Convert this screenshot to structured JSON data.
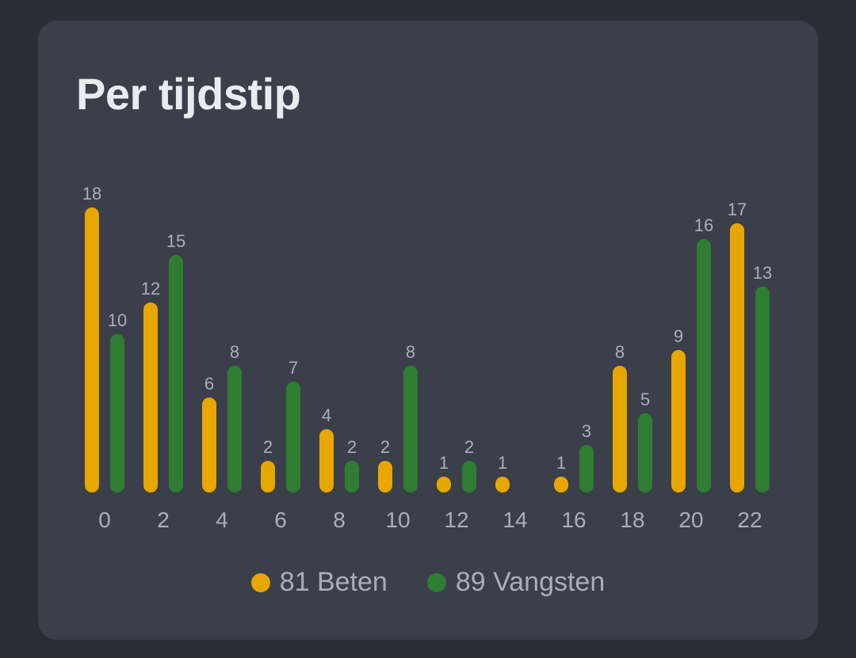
{
  "card": {
    "title": "Per tijdstip"
  },
  "colors": {
    "beten": "#e8a600",
    "vangsten": "#2e7d32",
    "label": "#a9aeb8",
    "background": "#3a3f4a"
  },
  "legend": {
    "items": [
      {
        "label": "81 Beten",
        "color": "#e8a600"
      },
      {
        "label": "89 Vangsten",
        "color": "#2e7d32"
      }
    ]
  },
  "chart_data": {
    "type": "bar",
    "title": "Per tijdstip",
    "xlabel": "",
    "ylabel": "",
    "x_ticks": [
      "0",
      "2",
      "4",
      "6",
      "8",
      "10",
      "12",
      "14",
      "16",
      "18",
      "20",
      "22"
    ],
    "categories": [
      "0",
      "2",
      "4",
      "6",
      "8",
      "10",
      "12",
      "14",
      "16",
      "18",
      "20",
      "22"
    ],
    "series": [
      {
        "name": "81 Beten",
        "color": "#e8a600",
        "values": [
          18,
          12,
          6,
          2,
          4,
          2,
          1,
          1,
          1,
          8,
          9,
          17
        ]
      },
      {
        "name": "89 Vangsten",
        "color": "#2e7d32",
        "values": [
          10,
          15,
          8,
          7,
          2,
          8,
          2,
          0,
          3,
          5,
          16,
          13
        ]
      }
    ],
    "ylim": [
      0,
      18
    ],
    "grid": false,
    "legend_position": "bottom-center",
    "data_labels": true
  }
}
